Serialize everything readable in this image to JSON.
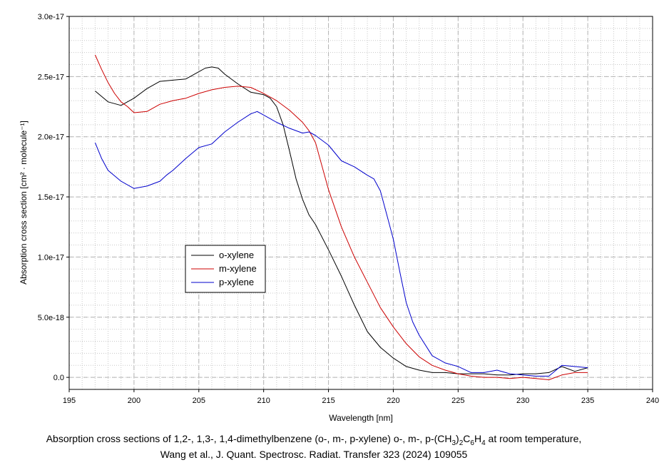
{
  "chart_data": {
    "type": "line",
    "title": "",
    "xlabel": "Wavelength [nm]",
    "ylabel": "Absorption cross section [cm² · molecule⁻¹]",
    "xlim": [
      195,
      240
    ],
    "ylim": [
      -1e-18,
      3e-17
    ],
    "x_ticks": [
      195,
      200,
      205,
      210,
      215,
      220,
      225,
      230,
      235,
      240
    ],
    "y_ticks": [
      0,
      5e-18,
      1e-17,
      1.5e-17,
      2e-17,
      2.5e-17,
      3e-17
    ],
    "y_tick_labels": [
      "0.0",
      "5.0e-18",
      "1.0e-17",
      "1.5e-17",
      "2.0e-17",
      "2.5e-17",
      "3.0e-17"
    ],
    "grid": true,
    "legend": "center-left",
    "series": [
      {
        "name": "o-xylene",
        "color": "#000000",
        "x": [
          197,
          198,
          199,
          200,
          201,
          202,
          203,
          204,
          205,
          205.5,
          206,
          206.5,
          207,
          208,
          209,
          210,
          210.5,
          211,
          211.5,
          212,
          212.5,
          213,
          213.5,
          214,
          215,
          216,
          217,
          218,
          219,
          220,
          221,
          222,
          223,
          224,
          225,
          226,
          227,
          228,
          229,
          230,
          231,
          232,
          233,
          234,
          235
        ],
        "values": [
          2.38e-17,
          2.29e-17,
          2.26e-17,
          2.32e-17,
          2.4e-17,
          2.46e-17,
          2.47e-17,
          2.48e-17,
          2.54e-17,
          2.57e-17,
          2.58e-17,
          2.57e-17,
          2.52e-17,
          2.44e-17,
          2.37e-17,
          2.35e-17,
          2.32e-17,
          2.25e-17,
          2.1e-17,
          1.88e-17,
          1.65e-17,
          1.48e-17,
          1.35e-17,
          1.27e-17,
          1.06e-17,
          8.4e-18,
          6e-18,
          3.8e-18,
          2.5e-18,
          1.6e-18,
          9e-19,
          6e-19,
          4e-19,
          4e-19,
          3e-19,
          3e-19,
          3e-19,
          2e-19,
          2e-19,
          3e-19,
          3e-19,
          4e-19,
          9e-19,
          5e-19,
          8e-19
        ]
      },
      {
        "name": "m-xylene",
        "color": "#cc0000",
        "x": [
          197,
          197.5,
          198,
          198.5,
          199,
          199.5,
          200,
          201,
          202,
          203,
          204,
          205,
          206,
          207,
          208,
          209,
          210,
          211,
          212,
          213,
          213.5,
          214,
          215,
          216,
          217,
          218,
          219,
          220,
          221,
          222,
          223,
          224,
          225,
          226,
          227,
          228,
          229,
          230,
          231,
          232,
          233,
          234,
          235
        ],
        "values": [
          2.68e-17,
          2.56e-17,
          2.45e-17,
          2.36e-17,
          2.29e-17,
          2.25e-17,
          2.2e-17,
          2.21e-17,
          2.27e-17,
          2.3e-17,
          2.32e-17,
          2.36e-17,
          2.39e-17,
          2.41e-17,
          2.42e-17,
          2.41e-17,
          2.36e-17,
          2.3e-17,
          2.22e-17,
          2.12e-17,
          2.05e-17,
          1.95e-17,
          1.56e-17,
          1.25e-17,
          1e-17,
          7.9e-18,
          5.8e-18,
          4.2e-18,
          2.8e-18,
          1.7e-18,
          1e-18,
          6e-19,
          3e-19,
          1e-19,
          0.0,
          0.0,
          -1e-19,
          0.0,
          -1e-19,
          -2e-19,
          2e-19,
          4e-19,
          4e-19
        ]
      },
      {
        "name": "p-xylene",
        "color": "#0000cc",
        "x": [
          197,
          197.5,
          198,
          199,
          200,
          201,
          202,
          202.5,
          203,
          204,
          205,
          206,
          207,
          208,
          209,
          209.5,
          210,
          211,
          212,
          213,
          213.5,
          214,
          215,
          216,
          217,
          218,
          218.5,
          219,
          219.5,
          220,
          220.5,
          221,
          221.5,
          222,
          223,
          224,
          225,
          226,
          227,
          228,
          229,
          230,
          231,
          232,
          233,
          234,
          235
        ],
        "values": [
          1.95e-17,
          1.82e-17,
          1.72e-17,
          1.63e-17,
          1.57e-17,
          1.59e-17,
          1.63e-17,
          1.68e-17,
          1.72e-17,
          1.82e-17,
          1.91e-17,
          1.94e-17,
          2.04e-17,
          2.12e-17,
          2.19e-17,
          2.21e-17,
          2.18e-17,
          2.12e-17,
          2.07e-17,
          2.03e-17,
          2.04e-17,
          2.01e-17,
          1.93e-17,
          1.8e-17,
          1.75e-17,
          1.68e-17,
          1.65e-17,
          1.55e-17,
          1.35e-17,
          1.15e-17,
          8.8e-18,
          6.2e-18,
          4.6e-18,
          3.5e-18,
          1.8e-18,
          1.2e-18,
          9e-19,
          4e-19,
          4e-19,
          6e-19,
          3e-19,
          2e-19,
          1e-19,
          1e-19,
          1e-18,
          9e-19,
          8e-19
        ]
      }
    ]
  },
  "caption": {
    "line1_prefix": "Absorption cross sections of 1,2-, 1,3-, 1,4-dimethylbenzene (o-, m-, p-xylene) o-, m-, p-(CH",
    "line1_sub1": "3",
    "line1_mid1": ")",
    "line1_sub2": "2",
    "line1_mid2": "C",
    "line1_sub3": "6",
    "line1_mid3": "H",
    "line1_sub4": "4",
    "line1_suffix": " at room temperature,",
    "line2": "Wang et al., J. Quant. Spectrosc. Radiat. Transfer 323 (2024) 109055"
  }
}
